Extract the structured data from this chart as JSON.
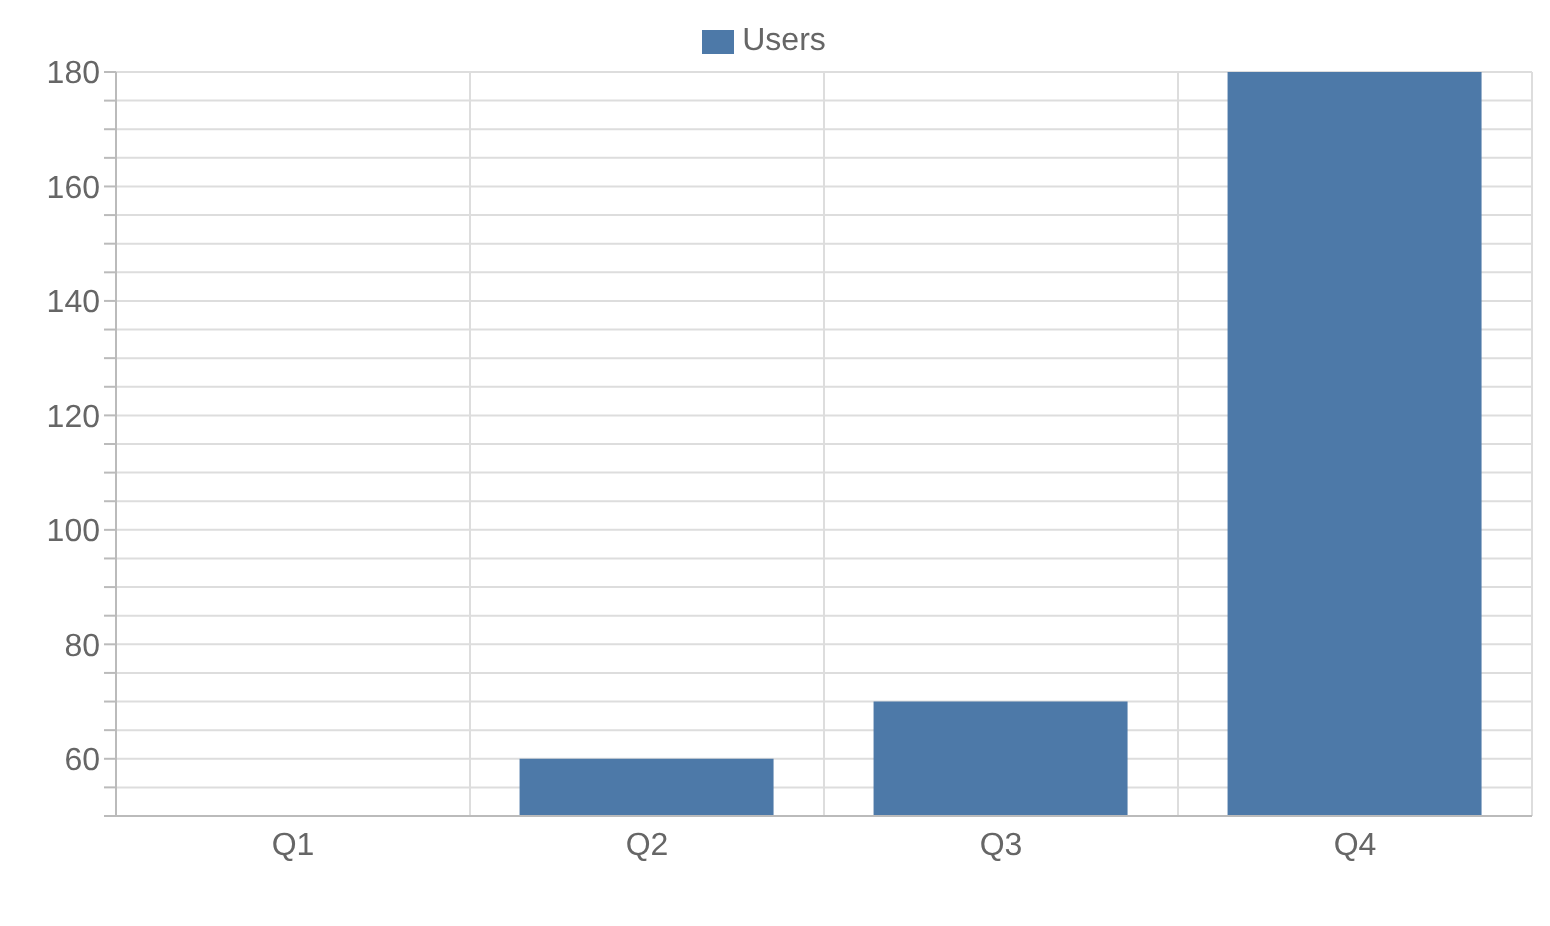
{
  "chart_data": {
    "type": "bar",
    "categories": [
      "Q1",
      "Q2",
      "Q3",
      "Q4"
    ],
    "series": [
      {
        "name": "Users",
        "color": "#4d79a8",
        "values": [
          50,
          60,
          70,
          180
        ]
      }
    ],
    "ylim": [
      50,
      180
    ],
    "yticks": [
      {
        "value": 50,
        "label": null
      },
      {
        "value": 55,
        "label": null
      },
      60,
      {
        "value": 65,
        "label": null
      },
      {
        "value": 70,
        "label": null
      },
      {
        "value": 75,
        "label": null
      },
      80,
      {
        "value": 85,
        "label": null
      },
      {
        "value": 90,
        "label": null
      },
      {
        "value": 95,
        "label": null
      },
      100,
      {
        "value": 105,
        "label": null
      },
      {
        "value": 110,
        "label": null
      },
      {
        "value": 115,
        "label": null
      },
      120,
      {
        "value": 125,
        "label": null
      },
      {
        "value": 130,
        "label": null
      },
      {
        "value": 135,
        "label": null
      },
      140,
      {
        "value": 145,
        "label": null
      },
      {
        "value": 150,
        "label": null
      },
      {
        "value": 155,
        "label": null
      },
      160,
      {
        "value": 165,
        "label": null
      },
      {
        "value": 170,
        "label": null
      },
      {
        "value": 175,
        "label": null
      },
      180
    ],
    "grid": true,
    "legend": "top"
  }
}
